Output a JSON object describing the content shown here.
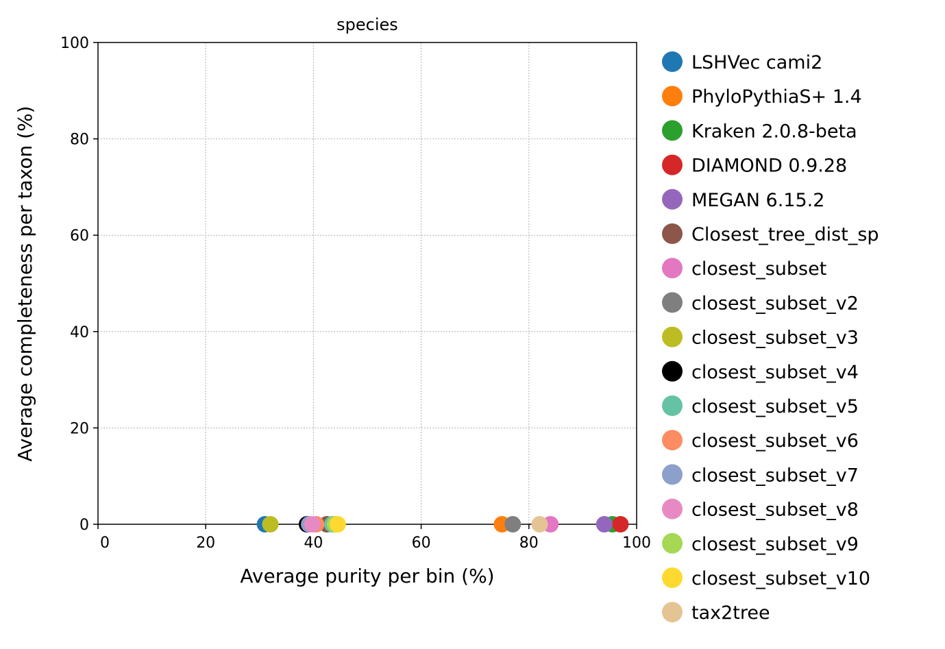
{
  "chart_data": {
    "type": "scatter",
    "title": "species",
    "xlabel": "Average purity per bin (%)",
    "ylabel": "Average completeness per taxon (%)",
    "xlim": [
      0,
      100
    ],
    "ylim": [
      0,
      100
    ],
    "xticks": [
      "0",
      "20",
      "40",
      "60",
      "80",
      "100"
    ],
    "yticks": [
      "0",
      "20",
      "40",
      "60",
      "80",
      "100"
    ],
    "grid": true,
    "legend_position": "outside-right",
    "series": [
      {
        "name": "LSHVec cami2",
        "color": "#1f77b4",
        "x": 31.0,
        "y": 0.0
      },
      {
        "name": "PhyloPythiaS+ 1.4",
        "color": "#ff7f0e",
        "x": 75.0,
        "y": 0.0
      },
      {
        "name": "Kraken 2.0.8-beta",
        "color": "#2ca02c",
        "x": 95.5,
        "y": 0.0
      },
      {
        "name": "DIAMOND 0.9.28",
        "color": "#d62728",
        "x": 97.0,
        "y": 0.0
      },
      {
        "name": "MEGAN 6.15.2",
        "color": "#9467bd",
        "x": 94.0,
        "y": 0.0
      },
      {
        "name": "Closest_tree_dist_sp",
        "color": "#8c564b",
        "x": 42.5,
        "y": 0.0
      },
      {
        "name": "closest_subset",
        "color": "#e377c2",
        "x": 84.0,
        "y": 0.0
      },
      {
        "name": "closest_subset_v2",
        "color": "#7f7f7f",
        "x": 77.0,
        "y": 0.0
      },
      {
        "name": "closest_subset_v3",
        "color": "#bcbd22",
        "x": 32.0,
        "y": 0.0
      },
      {
        "name": "closest_subset_v4",
        "color": "#000000",
        "x": 38.8,
        "y": 0.0
      },
      {
        "name": "closest_subset_v5",
        "color": "#66c2a5",
        "x": 43.5,
        "y": 0.0
      },
      {
        "name": "closest_subset_v6",
        "color": "#fc8d62",
        "x": 40.5,
        "y": 0.0
      },
      {
        "name": "closest_subset_v7",
        "color": "#8da0cb",
        "x": 39.2,
        "y": 0.0
      },
      {
        "name": "closest_subset_v8",
        "color": "#e78ac3",
        "x": 39.8,
        "y": 0.0
      },
      {
        "name": "closest_subset_v9",
        "color": "#a6d854",
        "x": 44.0,
        "y": 0.0
      },
      {
        "name": "closest_subset_v10",
        "color": "#ffd92f",
        "x": 44.5,
        "y": 0.0
      },
      {
        "name": "tax2tree",
        "color": "#e5c494",
        "x": 82.0,
        "y": 0.0
      }
    ]
  }
}
